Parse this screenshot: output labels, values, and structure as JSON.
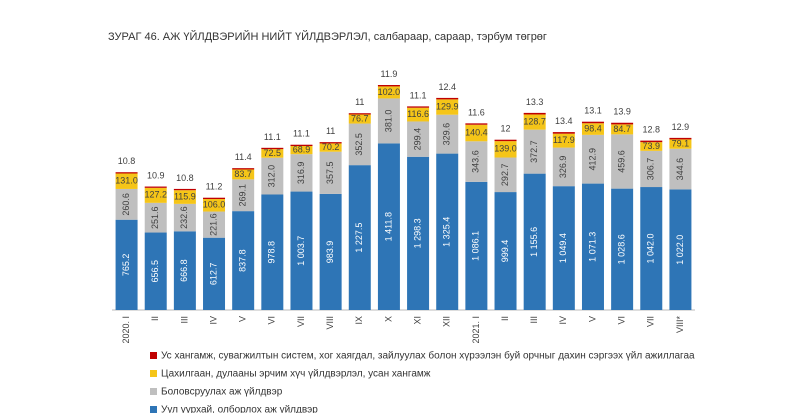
{
  "chart_data": {
    "type": "stacked_bar",
    "title": "ЗУРАГ 46.  АЖ ҮЙЛДВЭРИЙН НИЙТ ҮЙЛДВЭРЛЭЛ, салбараар, сараар, тэрбум төгрөг",
    "categories": [
      "2020. I",
      "II",
      "III",
      "IV",
      "V",
      "VI",
      "VII",
      "VIII",
      "IX",
      "X",
      "XI",
      "XII",
      "2021. I",
      "II",
      "III",
      "IV",
      "V",
      "VI",
      "VII",
      "VIII*"
    ],
    "series": [
      {
        "name": "Уул уурхай, олборлох аж үйлдвэр",
        "color": "#2e75b6",
        "values": [
          765.2,
          656.5,
          666.8,
          612.7,
          837.8,
          978.8,
          1003.7,
          983.9,
          1227.5,
          1411.8,
          1298.3,
          1325.4,
          1086.1,
          999.4,
          1155.6,
          1049.4,
          1071.3,
          1028.6,
          1042.0,
          1022.0
        ],
        "value_labels": [
          "765.2",
          "656.5",
          "666.8",
          "612.7",
          "837.8",
          "978.8",
          "1 003.7",
          "983.9",
          "1 227.5",
          "1 411.8",
          "1 298.3",
          "1 325.4",
          "1 086.1",
          "999.4",
          "1 155.6",
          "1 049.4",
          "1 071.3",
          "1 028.6",
          "1 042.0",
          "1 022.0"
        ]
      },
      {
        "name": "Боловсруулах аж үйлдвэр",
        "color": "#bfbfbf",
        "values": [
          260.6,
          251.6,
          232.6,
          221.6,
          269.1,
          312.0,
          316.9,
          357.5,
          352.5,
          381.0,
          299.4,
          329.6,
          343.6,
          292.7,
          372.7,
          326.9,
          412.9,
          459.6,
          306.7,
          344.6
        ],
        "value_labels": [
          "260.6",
          "251.6",
          "232.6",
          "221.6",
          "269.1",
          "312.0",
          "316.9",
          "357.5",
          "352.5",
          "381.0",
          "299.4",
          "329.6",
          "343.6",
          "292.7",
          "372.7",
          "326.9",
          "412.9",
          "459.6",
          "306.7",
          "344.6"
        ]
      },
      {
        "name": "Цахилгаан, дулааны эрчим хүч үйлдвэрлэл, усан хангамж",
        "color": "#f5c518",
        "values": [
          131.0,
          127.2,
          115.9,
          106.0,
          83.7,
          72.5,
          68.9,
          70.2,
          76.7,
          102.0,
          116.6,
          129.9,
          140.4,
          139.0,
          128.7,
          117.9,
          98.4,
          84.7,
          73.9,
          79.1
        ],
        "value_labels": [
          "131.0",
          "127.2",
          "115.9",
          "106.0",
          "83.7",
          "72.5",
          "68.9",
          "70.2",
          "76.7",
          "102.0",
          "116.6",
          "129.9",
          "140.4",
          "139.0",
          "128.7",
          "117.9",
          "98.4",
          "84.7",
          "73.9",
          "79.1"
        ]
      },
      {
        "name": "Ус хангамж, сувагжилтын систем, хог хаягдал, зайлуулах болон хүрээлэн буй орчныг дахин сэргээх үйл ажиллагаа",
        "color": "#c00000",
        "values": [
          10.8,
          10.9,
          10.8,
          11.2,
          11.4,
          11.1,
          11.1,
          11.0,
          11.0,
          11.9,
          11.1,
          12.4,
          11.6,
          12.0,
          13.3,
          13.4,
          13.1,
          13.9,
          12.8,
          12.9
        ]
      }
    ]
  }
}
